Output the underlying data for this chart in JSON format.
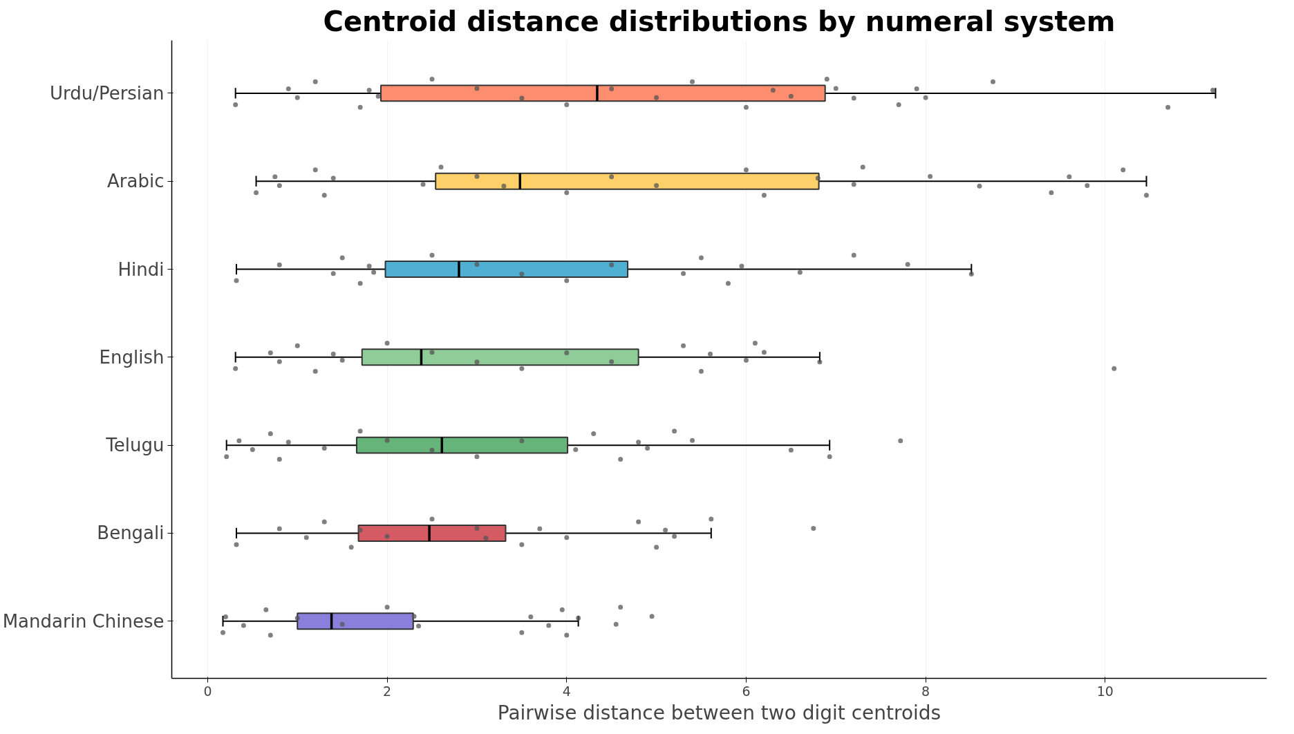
{
  "chart_data": {
    "type": "box",
    "orientation": "horizontal",
    "title": "Centroid distance distributions by numeral system",
    "xlabel": "Pairwise distance between two digit centroids",
    "categories": [
      "Urdu/Persian",
      "Arabic",
      "Hindi",
      "English",
      "Telugu",
      "Bengali",
      "Mandarin Chinese"
    ],
    "colors": [
      "#fc8d6e",
      "#fdd06a",
      "#4fb0d3",
      "#8fcc98",
      "#66b47a",
      "#d45a63",
      "#8a80db"
    ],
    "boxes": [
      {
        "low": 0.31,
        "q1": 1.93,
        "median": 4.34,
        "q3": 6.88,
        "high": 11.23
      },
      {
        "low": 0.54,
        "q1": 2.54,
        "median": 3.48,
        "q3": 6.81,
        "high": 10.46
      },
      {
        "low": 0.32,
        "q1": 1.98,
        "median": 2.8,
        "q3": 4.68,
        "high": 8.51
      },
      {
        "low": 0.31,
        "q1": 1.72,
        "median": 2.38,
        "q3": 4.8,
        "high": 6.82
      },
      {
        "low": 0.21,
        "q1": 1.66,
        "median": 2.61,
        "q3": 4.01,
        "high": 6.93
      },
      {
        "low": 0.32,
        "q1": 1.68,
        "median": 2.47,
        "q3": 3.32,
        "high": 5.61
      },
      {
        "low": 0.17,
        "q1": 1.0,
        "median": 1.38,
        "q3": 2.29,
        "high": 4.13
      }
    ],
    "series": [
      {
        "type": "scatter",
        "color": "#555555",
        "x": [
          "Urdu/Persian",
          "Urdu/Persian",
          "Urdu/Persian",
          "Urdu/Persian",
          "Urdu/Persian",
          "Urdu/Persian",
          "Urdu/Persian",
          "Urdu/Persian",
          "Urdu/Persian",
          "Urdu/Persian",
          "Urdu/Persian",
          "Urdu/Persian",
          "Urdu/Persian",
          "Urdu/Persian",
          "Urdu/Persian",
          "Urdu/Persian",
          "Urdu/Persian",
          "Urdu/Persian",
          "Urdu/Persian",
          "Urdu/Persian",
          "Urdu/Persian",
          "Urdu/Persian",
          "Urdu/Persian",
          "Urdu/Persian",
          "Urdu/Persian",
          "Urdu/Persian"
        ],
        "values": [
          0.31,
          0.9,
          1.0,
          1.2,
          1.7,
          1.8,
          1.9,
          2.5,
          3.0,
          3.5,
          4.0,
          4.5,
          5.0,
          5.4,
          6.0,
          6.3,
          6.5,
          6.9,
          7.0,
          7.2,
          7.7,
          7.9,
          8.0,
          8.75,
          10.7,
          11.2
        ]
      },
      {
        "type": "scatter",
        "color": "#555555",
        "x": [
          "Arabic",
          "Arabic",
          "Arabic",
          "Arabic",
          "Arabic",
          "Arabic",
          "Arabic",
          "Arabic",
          "Arabic",
          "Arabic",
          "Arabic",
          "Arabic",
          "Arabic",
          "Arabic",
          "Arabic",
          "Arabic",
          "Arabic",
          "Arabic",
          "Arabic",
          "Arabic",
          "Arabic",
          "Arabic",
          "Arabic",
          "Arabic",
          "Arabic"
        ],
        "values": [
          0.54,
          0.75,
          0.8,
          1.2,
          1.3,
          1.4,
          2.4,
          2.6,
          3.0,
          3.3,
          4.0,
          4.5,
          5.0,
          6.0,
          6.2,
          6.8,
          7.2,
          7.3,
          8.05,
          8.6,
          9.4,
          9.6,
          9.8,
          10.2,
          10.46
        ]
      },
      {
        "type": "scatter",
        "color": "#555555",
        "x": [
          "Hindi",
          "Hindi",
          "Hindi",
          "Hindi",
          "Hindi",
          "Hindi",
          "Hindi",
          "Hindi",
          "Hindi",
          "Hindi",
          "Hindi",
          "Hindi",
          "Hindi",
          "Hindi",
          "Hindi",
          "Hindi",
          "Hindi",
          "Hindi",
          "Hindi",
          "Hindi"
        ],
        "values": [
          0.32,
          0.8,
          1.4,
          1.5,
          1.7,
          1.8,
          1.85,
          2.5,
          3.0,
          3.5,
          4.0,
          4.5,
          5.3,
          5.5,
          5.8,
          5.95,
          6.6,
          7.2,
          7.8,
          8.51
        ]
      },
      {
        "type": "scatter",
        "color": "#555555",
        "x": [
          "English",
          "English",
          "English",
          "English",
          "English",
          "English",
          "English",
          "English",
          "English",
          "English",
          "English",
          "English",
          "English",
          "English",
          "English",
          "English",
          "English",
          "English",
          "English",
          "English",
          "English"
        ],
        "values": [
          0.31,
          0.7,
          0.8,
          1.0,
          1.2,
          1.4,
          1.5,
          2.0,
          2.5,
          3.0,
          3.5,
          4.0,
          4.5,
          5.3,
          5.5,
          5.6,
          6.0,
          6.1,
          6.2,
          6.82,
          10.1
        ]
      },
      {
        "type": "scatter",
        "color": "#555555",
        "x": [
          "Telugu",
          "Telugu",
          "Telugu",
          "Telugu",
          "Telugu",
          "Telugu",
          "Telugu",
          "Telugu",
          "Telugu",
          "Telugu",
          "Telugu",
          "Telugu",
          "Telugu",
          "Telugu",
          "Telugu",
          "Telugu",
          "Telugu",
          "Telugu",
          "Telugu",
          "Telugu",
          "Telugu",
          "Telugu"
        ],
        "values": [
          0.21,
          0.35,
          0.5,
          0.7,
          0.8,
          0.9,
          1.3,
          1.7,
          2.0,
          2.5,
          3.0,
          3.5,
          4.1,
          4.3,
          4.6,
          4.8,
          4.9,
          5.2,
          5.4,
          6.5,
          6.93,
          7.72
        ]
      },
      {
        "type": "scatter",
        "color": "#555555",
        "x": [
          "Bengali",
          "Bengali",
          "Bengali",
          "Bengali",
          "Bengali",
          "Bengali",
          "Bengali",
          "Bengali",
          "Bengali",
          "Bengali",
          "Bengali",
          "Bengali",
          "Bengali",
          "Bengali",
          "Bengali",
          "Bengali",
          "Bengali",
          "Bengali",
          "Bengali"
        ],
        "values": [
          0.32,
          0.8,
          1.1,
          1.3,
          1.6,
          1.7,
          2.0,
          2.5,
          3.0,
          3.1,
          3.5,
          3.7,
          4.0,
          4.8,
          5.0,
          5.1,
          5.2,
          5.61,
          6.75
        ]
      },
      {
        "type": "scatter",
        "color": "#555555",
        "x": [
          "Mandarin Chinese",
          "Mandarin Chinese",
          "Mandarin Chinese",
          "Mandarin Chinese",
          "Mandarin Chinese",
          "Mandarin Chinese",
          "Mandarin Chinese",
          "Mandarin Chinese",
          "Mandarin Chinese",
          "Mandarin Chinese",
          "Mandarin Chinese",
          "Mandarin Chinese",
          "Mandarin Chinese",
          "Mandarin Chinese",
          "Mandarin Chinese",
          "Mandarin Chinese",
          "Mandarin Chinese",
          "Mandarin Chinese",
          "Mandarin Chinese"
        ],
        "values": [
          0.17,
          0.2,
          0.4,
          0.65,
          0.7,
          1.0,
          1.5,
          2.0,
          2.3,
          2.35,
          3.5,
          3.6,
          3.8,
          3.95,
          4.0,
          4.13,
          4.55,
          4.6,
          4.95
        ]
      }
    ],
    "xlim": [
      -0.4,
      11.8
    ],
    "xticks": [
      0,
      2,
      4,
      6,
      8,
      10
    ],
    "grid": "x",
    "marker": "circle"
  }
}
